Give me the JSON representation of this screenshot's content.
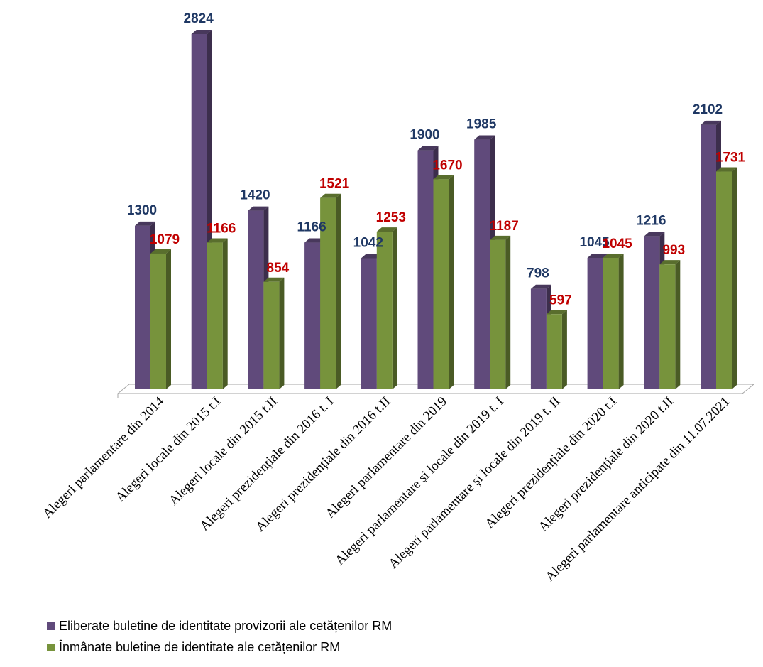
{
  "chart_data": {
    "type": "bar",
    "categories": [
      "Alegeri parlamentare din 2014",
      "Alegeri locale din  2015 t.I",
      "Alegeri locale din 2015 t.II",
      "Alegeri prezidențiale din 2016 t. I",
      "Alegeri prezidențiale din 2016 t.II",
      "Alegeri parlamentare din 2019",
      "Alegeri parlamentare și locale din 2019 t. I",
      "Alegeri parlamentare și locale din 2019 t. II",
      "Alegeri prezidențiale din 2020 t.I",
      "Alegeri prezidențiale din 2020 t.II",
      "Alegeri parlamentare anticipate din 11.07.2021"
    ],
    "series": [
      {
        "name": "Eliberate buletine de identitate provizorii ale cetățenilor RM",
        "values": [
          1300,
          2824,
          1420,
          1166,
          1042,
          1900,
          1985,
          798,
          1045,
          1216,
          2102
        ],
        "color": "#604a7b",
        "label_color": "#1f3864"
      },
      {
        "name": "Înmânate buletine de identitate ale cetățenilor RM",
        "values": [
          1079,
          1166,
          854,
          1521,
          1253,
          1670,
          1187,
          597,
          1045,
          993,
          1731
        ],
        "color": "#77933c",
        "label_color": "#c00000"
      }
    ],
    "ylim": [
      0,
      2824
    ],
    "grid": false,
    "legend_position": "bottom-left"
  }
}
